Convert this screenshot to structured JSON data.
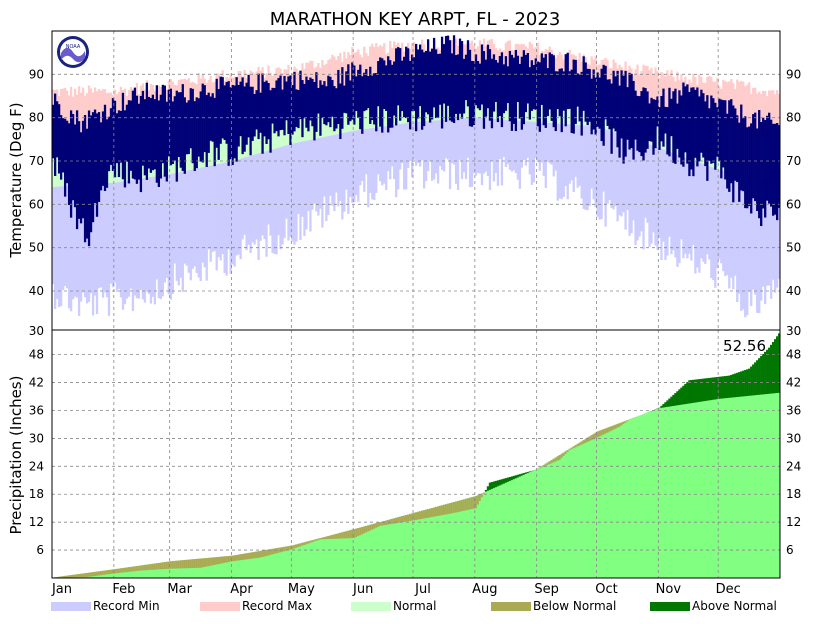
{
  "chart_data": [
    {
      "type": "bar",
      "title": "MARATHON KEY ARPT, FL - 2023",
      "ylabel": "Temperature (Deg F)",
      "ylim": [
        31,
        100
      ],
      "y_ticks": [
        40,
        50,
        60,
        70,
        80,
        90
      ],
      "months": [
        "Jan",
        "Feb",
        "Mar",
        "Apr",
        "May",
        "Jun",
        "Jul",
        "Aug",
        "Sep",
        "Oct",
        "Nov",
        "Dec"
      ],
      "grid": true,
      "normal_high": {
        "points": [
          [
            1,
            74
          ],
          [
            32,
            75
          ],
          [
            60,
            77
          ],
          [
            91,
            80
          ],
          [
            121,
            83
          ],
          [
            152,
            87
          ],
          [
            182,
            89
          ],
          [
            213,
            89.5
          ],
          [
            244,
            89
          ],
          [
            274,
            86
          ],
          [
            305,
            81
          ],
          [
            335,
            77
          ],
          [
            365,
            74
          ]
        ]
      },
      "normal_low": {
        "points": [
          [
            1,
            64
          ],
          [
            32,
            65
          ],
          [
            60,
            67
          ],
          [
            91,
            70
          ],
          [
            121,
            74
          ],
          [
            152,
            77
          ],
          [
            182,
            79
          ],
          [
            213,
            80
          ],
          [
            244,
            79
          ],
          [
            274,
            78
          ],
          [
            305,
            73
          ],
          [
            335,
            68
          ],
          [
            365,
            65
          ]
        ]
      },
      "record_max": {
        "points": [
          [
            1,
            86
          ],
          [
            32,
            86
          ],
          [
            60,
            88
          ],
          [
            91,
            90
          ],
          [
            121,
            91
          ],
          [
            152,
            95
          ],
          [
            182,
            97
          ],
          [
            213,
            97
          ],
          [
            244,
            96
          ],
          [
            274,
            93
          ],
          [
            305,
            90
          ],
          [
            335,
            88
          ],
          [
            365,
            86
          ]
        ]
      },
      "record_min": {
        "points": [
          [
            1,
            44
          ],
          [
            15,
            41
          ],
          [
            32,
            42
          ],
          [
            50,
            44
          ],
          [
            60,
            46
          ],
          [
            91,
            52
          ],
          [
            121,
            58
          ],
          [
            152,
            66
          ],
          [
            182,
            71
          ],
          [
            213,
            71
          ],
          [
            244,
            71
          ],
          [
            274,
            64
          ],
          [
            305,
            55
          ],
          [
            335,
            48
          ],
          [
            350,
            40
          ],
          [
            365,
            45
          ]
        ]
      },
      "observed_high": {
        "points": [
          [
            1,
            84
          ],
          [
            15,
            79
          ],
          [
            32,
            83
          ],
          [
            50,
            86
          ],
          [
            60,
            85
          ],
          [
            80,
            87
          ],
          [
            91,
            87
          ],
          [
            121,
            89
          ],
          [
            140,
            88
          ],
          [
            152,
            91
          ],
          [
            182,
            95
          ],
          [
            200,
            97
          ],
          [
            213,
            95
          ],
          [
            244,
            93
          ],
          [
            260,
            93
          ],
          [
            274,
            91
          ],
          [
            290,
            88
          ],
          [
            305,
            84
          ],
          [
            320,
            86
          ],
          [
            335,
            83
          ],
          [
            350,
            80
          ],
          [
            365,
            78
          ]
        ]
      },
      "observed_low": {
        "points": [
          [
            1,
            70
          ],
          [
            10,
            60
          ],
          [
            15,
            55
          ],
          [
            20,
            52
          ],
          [
            25,
            66
          ],
          [
            32,
            68
          ],
          [
            45,
            66
          ],
          [
            60,
            68
          ],
          [
            80,
            72
          ],
          [
            91,
            72
          ],
          [
            121,
            77
          ],
          [
            152,
            79
          ],
          [
            182,
            80
          ],
          [
            213,
            81
          ],
          [
            244,
            80
          ],
          [
            260,
            80
          ],
          [
            274,
            78
          ],
          [
            290,
            71
          ],
          [
            305,
            75
          ],
          [
            320,
            70
          ],
          [
            335,
            68
          ],
          [
            345,
            62
          ],
          [
            355,
            58
          ],
          [
            365,
            58
          ]
        ]
      }
    },
    {
      "type": "area",
      "ylabel": "Precipitation (Inches)",
      "ylim": [
        0,
        53.3
      ],
      "y_ticks": [
        6,
        12,
        18,
        24,
        30,
        36,
        42,
        48
      ],
      "top_label": "30",
      "months": [
        "Jan",
        "Feb",
        "Mar",
        "Apr",
        "May",
        "Jun",
        "Jul",
        "Aug",
        "Sep",
        "Oct",
        "Nov",
        "Dec"
      ],
      "grid": true,
      "total_label": "52.56",
      "normal_cumulative": {
        "points": [
          [
            1,
            0.1
          ],
          [
            32,
            1.9
          ],
          [
            60,
            3.6
          ],
          [
            91,
            4.8
          ],
          [
            121,
            7.0
          ],
          [
            152,
            10.5
          ],
          [
            182,
            14.0
          ],
          [
            213,
            17.6
          ],
          [
            244,
            23.5
          ],
          [
            274,
            31.5
          ],
          [
            305,
            36.5
          ],
          [
            335,
            38.5
          ],
          [
            365,
            39.8
          ]
        ]
      },
      "observed_cumulative": {
        "points": [
          [
            1,
            0
          ],
          [
            18,
            0.2
          ],
          [
            32,
            1.0
          ],
          [
            45,
            1.6
          ],
          [
            60,
            2.0
          ],
          [
            75,
            2.2
          ],
          [
            91,
            3.6
          ],
          [
            105,
            4.4
          ],
          [
            121,
            6.2
          ],
          [
            135,
            8.3
          ],
          [
            152,
            8.6
          ],
          [
            165,
            11.2
          ],
          [
            182,
            12.4
          ],
          [
            200,
            13.8
          ],
          [
            213,
            15.0
          ],
          [
            220,
            20.5
          ],
          [
            244,
            23.4
          ],
          [
            255,
            25.4
          ],
          [
            260,
            27.5
          ],
          [
            274,
            30.2
          ],
          [
            285,
            32.5
          ],
          [
            290,
            34.0
          ],
          [
            305,
            36.6
          ],
          [
            320,
            42.5
          ],
          [
            340,
            43.5
          ],
          [
            350,
            45.0
          ],
          [
            360,
            49.5
          ],
          [
            365,
            52.56
          ]
        ]
      }
    }
  ],
  "legend": [
    {
      "label": "Record Min",
      "color": "#ccccff"
    },
    {
      "label": "Record Max",
      "color": "#ffcccc"
    },
    {
      "label": "Normal",
      "color": "#ccffcc"
    },
    {
      "label": "Below Normal",
      "color": "#aaaa55"
    },
    {
      "label": "Above Normal",
      "color": "#007700"
    }
  ],
  "colors": {
    "observed_temp": "#000077",
    "normal_precip": "#80ff80"
  },
  "logo_text": "NOAA"
}
